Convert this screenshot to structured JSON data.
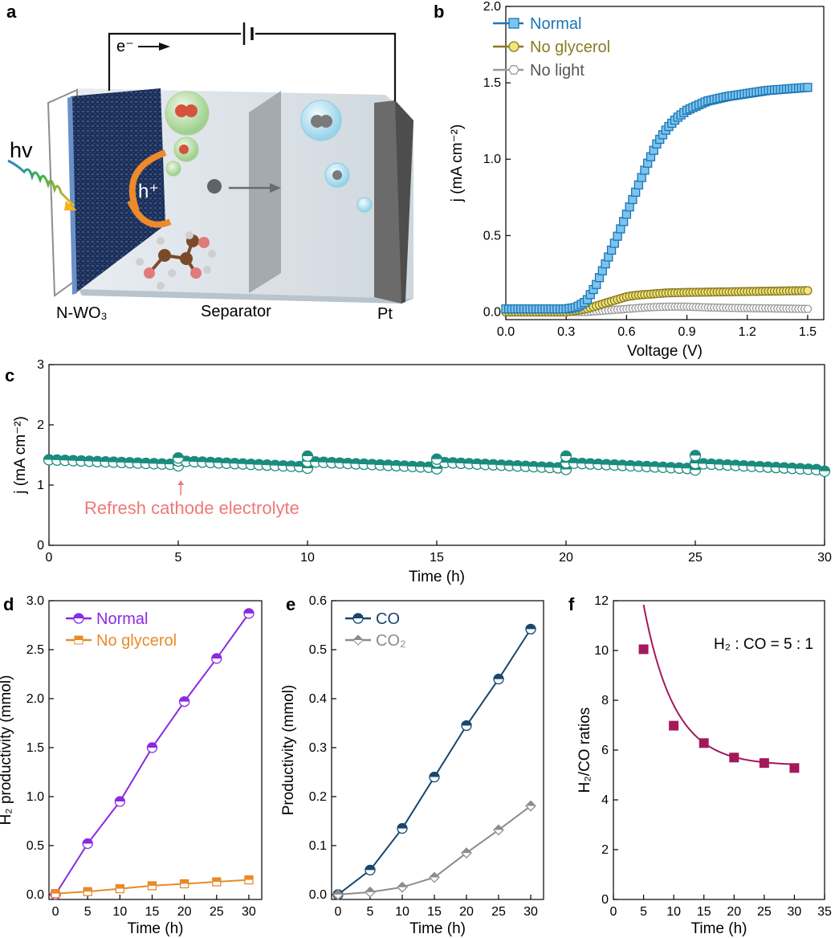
{
  "panel_labels": {
    "a": "a",
    "b": "b",
    "c": "c",
    "d": "d",
    "e": "e",
    "f": "f"
  },
  "schematic": {
    "photon": "hv",
    "electron": "e⁻",
    "hole": "h⁺",
    "anode": "N-WO₃",
    "separator": "Separator",
    "cathode": "Pt"
  },
  "colors": {
    "normal_b": "#1b76b5",
    "normal_b_fill": "#7cc3ee",
    "glycerol_b": "#8a7a22",
    "glycerol_b_fill": "#f0e67a",
    "nolight_b": "#9a9a9a",
    "teal": "#1a8b7d",
    "purple": "#8a2be2",
    "orange": "#e98a2a",
    "navy": "#17476e",
    "gray": "#8c8c8c",
    "magenta": "#a3195b",
    "annot": "#f07878"
  },
  "chart_data": [
    {
      "panel": "b",
      "type": "line",
      "xlabel": "Voltage (V)",
      "ylabel": "j (mA cm⁻²)",
      "xlim": [
        0,
        1.58
      ],
      "ylim": [
        -0.05,
        2.0
      ],
      "xticks": [
        "0.0",
        "0.3",
        "0.6",
        "0.9",
        "1.2",
        "1.5"
      ],
      "yticks": [
        "0.0",
        "0.5",
        "1.0",
        "1.5",
        "2.0"
      ],
      "legend_position": "top-left",
      "series": [
        {
          "name": "Normal",
          "x": [
            0,
            0.1,
            0.2,
            0.3,
            0.35,
            0.4,
            0.45,
            0.5,
            0.55,
            0.6,
            0.65,
            0.7,
            0.75,
            0.8,
            0.85,
            0.9,
            0.95,
            1.0,
            1.1,
            1.2,
            1.3,
            1.4,
            1.5
          ],
          "y": [
            0.02,
            0.02,
            0.02,
            0.02,
            0.03,
            0.07,
            0.18,
            0.33,
            0.48,
            0.64,
            0.8,
            0.96,
            1.1,
            1.2,
            1.27,
            1.32,
            1.35,
            1.38,
            1.41,
            1.43,
            1.45,
            1.46,
            1.47
          ]
        },
        {
          "name": "No glycerol",
          "x": [
            0,
            0.1,
            0.2,
            0.3,
            0.35,
            0.4,
            0.45,
            0.5,
            0.55,
            0.6,
            0.65,
            0.7,
            0.75,
            0.8,
            0.9,
            1.0,
            1.1,
            1.2,
            1.3,
            1.4,
            1.5
          ],
          "y": [
            0,
            0,
            0,
            0,
            0.01,
            0.02,
            0.04,
            0.06,
            0.08,
            0.1,
            0.11,
            0.115,
            0.12,
            0.125,
            0.128,
            0.13,
            0.132,
            0.134,
            0.136,
            0.138,
            0.14
          ]
        },
        {
          "name": "No light",
          "x": [
            0,
            0.2,
            0.4,
            0.5,
            0.6,
            0.7,
            0.8,
            0.9,
            1.0,
            1.2,
            1.4,
            1.5
          ],
          "y": [
            0,
            0,
            0,
            0.01,
            0.02,
            0.03,
            0.035,
            0.035,
            0.03,
            0.025,
            0.022,
            0.02
          ]
        }
      ]
    },
    {
      "panel": "c",
      "type": "line",
      "xlabel": "Time (h)",
      "ylabel": "j (mA cm⁻²)",
      "xlim": [
        0,
        30
      ],
      "ylim": [
        0,
        3
      ],
      "xticks": [
        "0",
        "5",
        "10",
        "15",
        "20",
        "25",
        "30"
      ],
      "yticks": [
        "0",
        "1",
        "2",
        "3"
      ],
      "annotation": "Refresh cathode electrolyte",
      "annotation_x": 5.1,
      "segments": [
        {
          "x0": 0,
          "x1": 5,
          "y0": 1.42,
          "y1": 1.34,
          "peak": 1.42
        },
        {
          "x0": 5,
          "x1": 10,
          "y0": 1.4,
          "y1": 1.3,
          "peak": 1.45
        },
        {
          "x0": 10,
          "x1": 15,
          "y0": 1.39,
          "y1": 1.29,
          "peak": 1.48
        },
        {
          "x0": 15,
          "x1": 20,
          "y0": 1.38,
          "y1": 1.28,
          "peak": 1.43
        },
        {
          "x0": 20,
          "x1": 25,
          "y0": 1.37,
          "y1": 1.27,
          "peak": 1.48
        },
        {
          "x0": 25,
          "x1": 30,
          "y0": 1.36,
          "y1": 1.25,
          "peak": 1.49
        }
      ]
    },
    {
      "panel": "d",
      "type": "line",
      "xlabel": "Time (h)",
      "ylabel": "H₂ productivity (mmol)",
      "xlim": [
        -1,
        32
      ],
      "ylim": [
        -0.05,
        3.0
      ],
      "xticks": [
        "0",
        "5",
        "10",
        "15",
        "20",
        "25",
        "30"
      ],
      "yticks": [
        "0.0",
        "0.5",
        "1.0",
        "1.5",
        "2.0",
        "2.5",
        "3.0"
      ],
      "legend_position": "top-left",
      "x": [
        0,
        5,
        10,
        15,
        20,
        25,
        30
      ],
      "series": [
        {
          "name": "Normal",
          "values": [
            0,
            0.52,
            0.95,
            1.5,
            1.97,
            2.41,
            2.87
          ]
        },
        {
          "name": "No glycerol",
          "values": [
            0.01,
            0.03,
            0.06,
            0.09,
            0.11,
            0.13,
            0.15
          ]
        }
      ]
    },
    {
      "panel": "e",
      "type": "line",
      "xlabel": "Time (h)",
      "ylabel": "Productivity (mmol)",
      "xlim": [
        -1,
        32
      ],
      "ylim": [
        -0.01,
        0.6
      ],
      "xticks": [
        "0",
        "5",
        "10",
        "15",
        "20",
        "25",
        "30"
      ],
      "yticks": [
        "0.0",
        "0.1",
        "0.2",
        "0.3",
        "0.4",
        "0.5",
        "0.6"
      ],
      "legend_position": "top-left",
      "x": [
        0,
        5,
        10,
        15,
        20,
        25,
        30
      ],
      "series": [
        {
          "name": "CO",
          "values": [
            0,
            0.05,
            0.135,
            0.24,
            0.345,
            0.44,
            0.542
          ]
        },
        {
          "name": "CO₂",
          "values": [
            0,
            0.005,
            0.015,
            0.035,
            0.085,
            0.132,
            0.181
          ]
        }
      ]
    },
    {
      "panel": "f",
      "type": "scatter",
      "xlabel": "Time (h)",
      "ylabel": "H₂/CO ratios",
      "xlim": [
        0,
        35
      ],
      "ylim": [
        0,
        12
      ],
      "xticks": [
        "0",
        "5",
        "10",
        "15",
        "20",
        "25",
        "30",
        "35"
      ],
      "yticks": [
        "0",
        "2",
        "4",
        "6",
        "8",
        "10",
        "12"
      ],
      "annotation": "H₂ : CO = 5 : 1",
      "x": [
        5,
        10,
        15,
        20,
        25,
        30
      ],
      "values": [
        10.05,
        6.98,
        6.28,
        5.7,
        5.48,
        5.28
      ],
      "fit": {
        "type": "exponential",
        "a": 5.38,
        "b": 17.2,
        "k": 0.196
      }
    }
  ]
}
